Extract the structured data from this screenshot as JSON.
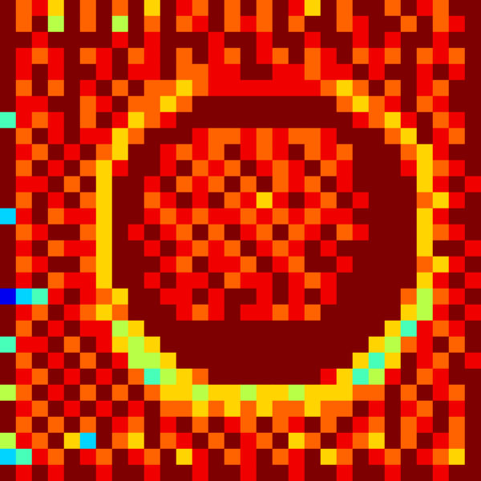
{
  "chart_data": {
    "type": "heatmap",
    "tick_labels": false,
    "color_range": [
      0,
      9
    ],
    "cells": [
      [
        9,
        7,
        8,
        6,
        9,
        7,
        9,
        7,
        9,
        6,
        9,
        8,
        7,
        9,
        7,
        9,
        7,
        9,
        8,
        6,
        9,
        7,
        9,
        9,
        7,
        9,
        8,
        7,
        9,
        9
      ],
      [
        9,
        7,
        9,
        5,
        9,
        7,
        9,
        5,
        9,
        7,
        9,
        7,
        8,
        9,
        7,
        8,
        7,
        9,
        7,
        9,
        9,
        7,
        8,
        9,
        9,
        7,
        9,
        7,
        8,
        9
      ],
      [
        9,
        9,
        8,
        9,
        9,
        9,
        9,
        8,
        9,
        8,
        9,
        9,
        9,
        8,
        9,
        9,
        8,
        9,
        9,
        8,
        9,
        9,
        8,
        9,
        8,
        9,
        9,
        8,
        9,
        9
      ],
      [
        9,
        8,
        7,
        8,
        9,
        7,
        8,
        9,
        7,
        8,
        9,
        7,
        9,
        8,
        7,
        9,
        8,
        7,
        9,
        7,
        8,
        9,
        7,
        8,
        7,
        9,
        7,
        8,
        7,
        9
      ],
      [
        9,
        8,
        9,
        8,
        9,
        9,
        8,
        9,
        8,
        8,
        9,
        7,
        7,
        8,
        8,
        9,
        9,
        8,
        8,
        7,
        8,
        8,
        9,
        8,
        9,
        9,
        8,
        9,
        8,
        9
      ],
      [
        9,
        7,
        9,
        7,
        9,
        8,
        9,
        7,
        9,
        7,
        7,
        6,
        7,
        8,
        8,
        8,
        8,
        8,
        8,
        8,
        7,
        6,
        7,
        9,
        7,
        9,
        8,
        7,
        9,
        9
      ],
      [
        9,
        8,
        8,
        9,
        9,
        7,
        8,
        9,
        7,
        7,
        6,
        7,
        9,
        9,
        9,
        9,
        9,
        9,
        9,
        9,
        9,
        7,
        6,
        7,
        8,
        9,
        7,
        8,
        9,
        9
      ],
      [
        4,
        8,
        7,
        8,
        9,
        7,
        9,
        8,
        6,
        7,
        8,
        9,
        9,
        9,
        9,
        9,
        9,
        9,
        9,
        9,
        9,
        9,
        8,
        7,
        6,
        8,
        9,
        7,
        8,
        9
      ],
      [
        9,
        7,
        9,
        8,
        9,
        8,
        8,
        6,
        7,
        9,
        9,
        9,
        8,
        7,
        7,
        8,
        7,
        8,
        7,
        7,
        8,
        9,
        9,
        9,
        7,
        6,
        9,
        8,
        7,
        9
      ],
      [
        9,
        8,
        7,
        9,
        8,
        9,
        7,
        6,
        9,
        9,
        8,
        7,
        8,
        7,
        9,
        8,
        7,
        8,
        9,
        7,
        8,
        7,
        9,
        9,
        9,
        7,
        6,
        8,
        9,
        9
      ],
      [
        9,
        7,
        9,
        8,
        9,
        7,
        6,
        8,
        9,
        9,
        8,
        9,
        7,
        8,
        7,
        9,
        8,
        7,
        8,
        9,
        7,
        8,
        9,
        9,
        9,
        8,
        6,
        7,
        8,
        9
      ],
      [
        9,
        8,
        8,
        9,
        7,
        9,
        6,
        9,
        9,
        8,
        9,
        7,
        8,
        7,
        9,
        7,
        9,
        7,
        8,
        7,
        9,
        8,
        9,
        9,
        9,
        9,
        6,
        8,
        9,
        8
      ],
      [
        9,
        7,
        9,
        8,
        9,
        7,
        6,
        9,
        9,
        7,
        8,
        9,
        8,
        9,
        7,
        8,
        6,
        8,
        9,
        8,
        7,
        9,
        8,
        9,
        9,
        9,
        7,
        6,
        8,
        9
      ],
      [
        3,
        8,
        9,
        7,
        8,
        8,
        6,
        9,
        9,
        8,
        7,
        8,
        7,
        8,
        8,
        7,
        8,
        7,
        8,
        7,
        8,
        8,
        9,
        9,
        9,
        9,
        6,
        8,
        9,
        9
      ],
      [
        9,
        7,
        8,
        9,
        9,
        7,
        6,
        9,
        8,
        9,
        8,
        7,
        9,
        7,
        9,
        8,
        7,
        9,
        7,
        8,
        9,
        7,
        8,
        9,
        9,
        9,
        6,
        7,
        8,
        9
      ],
      [
        9,
        8,
        9,
        7,
        8,
        8,
        6,
        9,
        9,
        8,
        9,
        8,
        7,
        8,
        7,
        9,
        8,
        7,
        8,
        9,
        8,
        9,
        9,
        9,
        9,
        9,
        6,
        9,
        9,
        8
      ],
      [
        9,
        7,
        8,
        9,
        9,
        7,
        6,
        9,
        9,
        9,
        8,
        7,
        9,
        8,
        8,
        7,
        9,
        8,
        7,
        9,
        9,
        8,
        9,
        9,
        9,
        9,
        7,
        6,
        8,
        9
      ],
      [
        9,
        8,
        9,
        7,
        8,
        8,
        6,
        9,
        9,
        8,
        9,
        8,
        8,
        9,
        7,
        8,
        8,
        9,
        8,
        7,
        8,
        9,
        9,
        9,
        9,
        9,
        6,
        8,
        9,
        8
      ],
      [
        1,
        3,
        4,
        8,
        9,
        8,
        7,
        6,
        9,
        9,
        8,
        8,
        9,
        8,
        9,
        9,
        8,
        9,
        8,
        9,
        8,
        9,
        9,
        9,
        9,
        7,
        5,
        7,
        8,
        9
      ],
      [
        9,
        8,
        7,
        9,
        8,
        7,
        6,
        7,
        9,
        9,
        9,
        8,
        7,
        8,
        9,
        8,
        8,
        7,
        8,
        7,
        9,
        9,
        9,
        9,
        9,
        6,
        5,
        8,
        9,
        8
      ],
      [
        9,
        7,
        9,
        8,
        9,
        8,
        8,
        5,
        6,
        9,
        9,
        9,
        9,
        9,
        9,
        9,
        9,
        9,
        9,
        9,
        9,
        9,
        9,
        9,
        6,
        4,
        8,
        7,
        8,
        9
      ],
      [
        4,
        8,
        8,
        9,
        7,
        9,
        8,
        6,
        5,
        6,
        9,
        9,
        9,
        9,
        9,
        9,
        9,
        9,
        9,
        9,
        9,
        9,
        9,
        6,
        5,
        7,
        8,
        9,
        7,
        9
      ],
      [
        9,
        7,
        9,
        8,
        9,
        7,
        9,
        8,
        5,
        5,
        6,
        9,
        9,
        9,
        9,
        9,
        9,
        9,
        9,
        9,
        9,
        9,
        6,
        4,
        6,
        9,
        8,
        7,
        9,
        8
      ],
      [
        9,
        8,
        7,
        9,
        8,
        9,
        8,
        9,
        7,
        4,
        5,
        6,
        7,
        9,
        9,
        9,
        9,
        9,
        9,
        9,
        8,
        6,
        4,
        5,
        8,
        9,
        7,
        8,
        9,
        9
      ],
      [
        5,
        7,
        9,
        8,
        9,
        7,
        9,
        7,
        9,
        7,
        6,
        6,
        5,
        6,
        6,
        5,
        6,
        6,
        5,
        6,
        6,
        6,
        7,
        7,
        9,
        7,
        9,
        8,
        7,
        9
      ],
      [
        9,
        8,
        7,
        9,
        8,
        9,
        8,
        9,
        8,
        9,
        7,
        7,
        6,
        7,
        6,
        7,
        6,
        7,
        7,
        6,
        7,
        7,
        9,
        8,
        9,
        8,
        7,
        9,
        8,
        9
      ],
      [
        9,
        7,
        9,
        7,
        9,
        7,
        9,
        8,
        7,
        9,
        8,
        9,
        7,
        9,
        8,
        7,
        9,
        7,
        8,
        9,
        7,
        9,
        8,
        7,
        9,
        7,
        8,
        9,
        7,
        9
      ],
      [
        5,
        8,
        7,
        9,
        6,
        3,
        9,
        7,
        6,
        9,
        7,
        8,
        9,
        7,
        9,
        8,
        7,
        9,
        6,
        7,
        9,
        8,
        7,
        6,
        9,
        7,
        9,
        8,
        7,
        9
      ],
      [
        3,
        4,
        8,
        7,
        9,
        8,
        7,
        9,
        8,
        7,
        9,
        6,
        8,
        9,
        7,
        8,
        9,
        7,
        8,
        9,
        6,
        7,
        9,
        8,
        7,
        9,
        8,
        7,
        6,
        9
      ],
      [
        9,
        8,
        9,
        8,
        9,
        9,
        8,
        9,
        9,
        8,
        9,
        9,
        8,
        9,
        9,
        8,
        9,
        9,
        8,
        9,
        9,
        8,
        9,
        9,
        8,
        9,
        9,
        8,
        9,
        9
      ]
    ]
  }
}
